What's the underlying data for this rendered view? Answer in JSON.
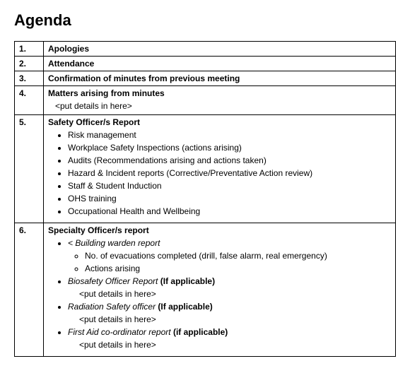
{
  "title": "Agenda",
  "rows": [
    {
      "n": "1.",
      "title": "Apologies"
    },
    {
      "n": "2.",
      "title": "Attendance"
    },
    {
      "n": "3.",
      "title": "Confirmation of minutes from previous meeting"
    },
    {
      "n": "4.",
      "title": "Matters arising from minutes",
      "note": "<put details in here>"
    },
    {
      "n": "5.",
      "title": "Safety Officer/s Report",
      "bullets": [
        "Risk management",
        "Workplace Safety Inspections (actions arising)",
        "Audits (Recommendations arising and actions taken)",
        "Hazard & Incident reports (Corrective/Preventative Action review)",
        "Staff & Student Induction",
        "OHS training",
        "Occupational Health and Wellbeing"
      ]
    },
    {
      "n": "6.",
      "title": "Specialty Officer/s report",
      "items": [
        {
          "label_italic": "< Building warden report",
          "sub": [
            "No. of evacuations completed (drill, false alarm, real emergency)",
            "Actions arising"
          ]
        },
        {
          "label_italic": "Biosafety Officer Report",
          "label_bold_suffix": "(If applicable)",
          "note": "<put details in here>"
        },
        {
          "label_italic": "Radiation Safety officer",
          "label_bold_suffix": "(If applicable)",
          "note": "<put details in here>"
        },
        {
          "label_italic": "First Aid co-ordinator report",
          "label_bold_suffix": "(if applicable)",
          "note": "<put details in here>"
        }
      ]
    }
  ]
}
